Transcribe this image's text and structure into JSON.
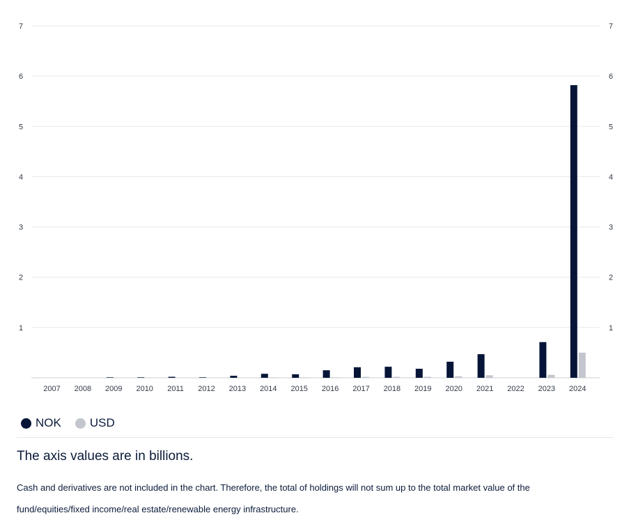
{
  "chart_data": {
    "type": "bar",
    "categories": [
      "2007",
      "2008",
      "2009",
      "2010",
      "2011",
      "2012",
      "2013",
      "2014",
      "2015",
      "2016",
      "2017",
      "2018",
      "2019",
      "2020",
      "2021",
      "2022",
      "2023",
      "2024"
    ],
    "series": [
      {
        "name": "NOK",
        "color": "#061537",
        "values": [
          0,
          0,
          0.01,
          0.01,
          0.02,
          0.01,
          0.04,
          0.08,
          0.07,
          0.15,
          0.21,
          0.22,
          0.18,
          0.32,
          0.47,
          0,
          0.71,
          5.82
        ]
      },
      {
        "name": "USD",
        "color": "#c3c6cc",
        "values": [
          0,
          0,
          0,
          0,
          0,
          0,
          0,
          0.01,
          0.01,
          0.01,
          0.02,
          0.02,
          0.02,
          0.03,
          0.05,
          0,
          0.06,
          0.5
        ]
      }
    ],
    "ylim": [
      0,
      7
    ],
    "yticks": [
      "0",
      "1",
      "2",
      "3",
      "4",
      "5",
      "6",
      "7"
    ],
    "ylabel": "",
    "xlabel": "",
    "grid": true,
    "legend_position": "bottom-left"
  },
  "legend": [
    {
      "label": "NOK",
      "color": "#061537"
    },
    {
      "label": "USD",
      "color": "#c3c6cc"
    }
  ],
  "axis_note": "The axis values are in billions.",
  "footnote": "Cash and derivatives are not included in the chart. Therefore, the total of holdings will not sum up to the total market value of the fund/equities/fixed income/real estate/renewable energy infrastructure."
}
